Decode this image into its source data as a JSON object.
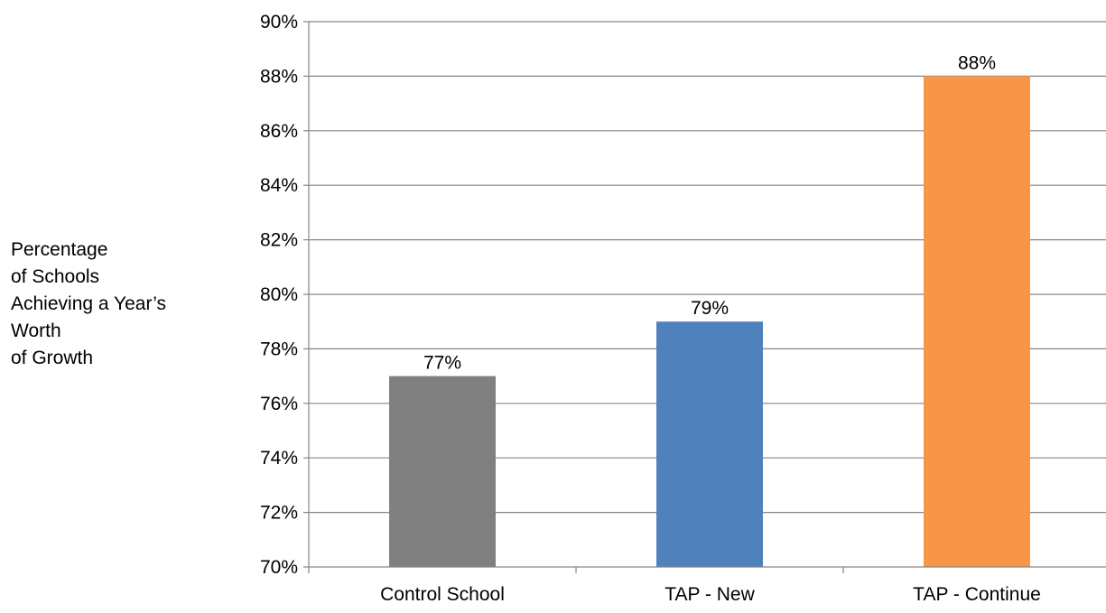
{
  "chart_data": {
    "type": "bar",
    "title": "",
    "xlabel": "",
    "ylabel_lines": [
      "Percentage",
      "of Schools",
      "Achieving a Year’s",
      "Worth",
      "of Growth"
    ],
    "categories": [
      "Control School",
      "TAP - New",
      "TAP - Continue"
    ],
    "values": [
      77,
      79,
      88
    ],
    "data_labels": [
      "77%",
      "79%",
      "88%"
    ],
    "bar_colors": [
      "#808080",
      "#4f81bd",
      "#f79646"
    ],
    "ylim": [
      70,
      90
    ],
    "yticks": [
      70,
      72,
      74,
      76,
      78,
      80,
      82,
      84,
      86,
      88,
      90
    ],
    "ytick_labels": [
      "70%",
      "72%",
      "74%",
      "76%",
      "78%",
      "80%",
      "82%",
      "84%",
      "86%",
      "88%",
      "90%"
    ],
    "grid": true,
    "legend": "none"
  }
}
